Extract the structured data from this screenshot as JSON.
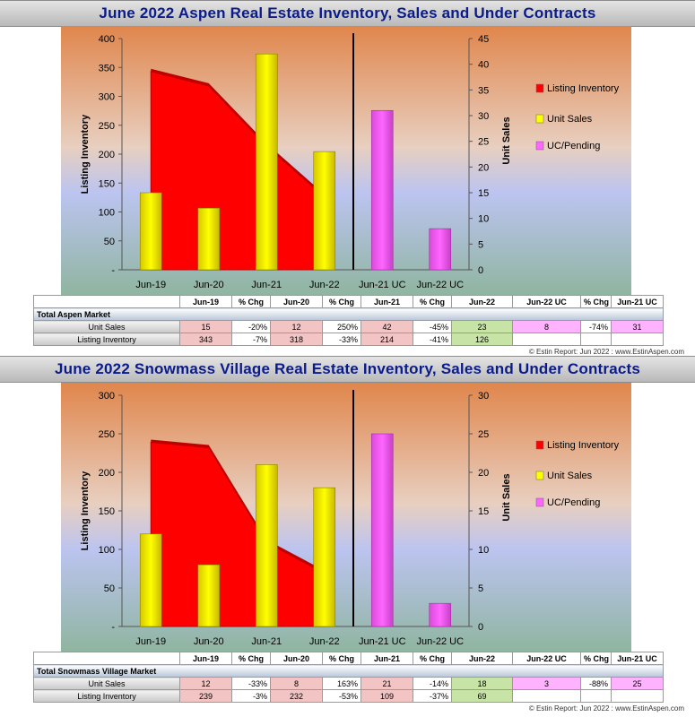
{
  "charts": [
    {
      "title": "June 2022 Aspen Real Estate Inventory, Sales and Under Contracts",
      "table_section": "Total Aspen Market",
      "credit": "© Estin Report: Jun 2022 : www.EstinAspen.com",
      "table_headers": [
        "Jun-19",
        "% Chg",
        "Jun-20",
        "% Chg",
        "Jun-21",
        "% Chg",
        "Jun-22",
        "Jun-22 UC",
        "% Chg",
        "Jun-21 UC"
      ],
      "unit_sales_row": {
        "label": "Unit Sales",
        "cells": [
          "15",
          "-20%",
          "12",
          "250%",
          "42",
          "-45%",
          "23",
          "8",
          "-74%",
          "31"
        ]
      },
      "inventory_row": {
        "label": "Listing Inventory",
        "cells": [
          "343",
          "-7%",
          "318",
          "-33%",
          "214",
          "-41%",
          "126",
          "",
          "",
          ""
        ]
      }
    },
    {
      "title": "June 2022 Snowmass Village Real Estate Inventory, Sales and Under Contracts",
      "table_section": "Total Snowmass Village Market",
      "credit": "© Estin Report: Jun 2022 : www.EstinAspen.com",
      "table_headers": [
        "Jun-19",
        "% Chg",
        "Jun-20",
        "% Chg",
        "Jun-21",
        "% Chg",
        "Jun-22",
        "Jun-22 UC",
        "% Chg",
        "Jun-21 UC"
      ],
      "unit_sales_row": {
        "label": "Unit Sales",
        "cells": [
          "12",
          "-33%",
          "8",
          "163%",
          "21",
          "-14%",
          "18",
          "3",
          "-88%",
          "25"
        ]
      },
      "inventory_row": {
        "label": "Listing Inventory",
        "cells": [
          "239",
          "-3%",
          "232",
          "-53%",
          "109",
          "-37%",
          "69",
          "",
          "",
          ""
        ]
      }
    }
  ],
  "colors": {
    "inventory": "#ff0000",
    "sales": "#ffff00",
    "uc": "#ff66ff"
  },
  "chart_data": [
    {
      "type": "bar",
      "categories": [
        "Jun-19",
        "Jun-20",
        "Jun-21",
        "Jun-22",
        "Jun-21 UC",
        "Jun-22 UC"
      ],
      "series": [
        {
          "name": "Listing Inventory",
          "kind": "area",
          "axis": "left",
          "values": [
            343,
            318,
            214,
            126,
            null,
            null
          ]
        },
        {
          "name": "Unit Sales",
          "kind": "bar",
          "axis": "right",
          "values": [
            15,
            12,
            42,
            23,
            null,
            null
          ]
        },
        {
          "name": "UC/Pending",
          "kind": "bar",
          "axis": "right",
          "values": [
            null,
            null,
            null,
            null,
            31,
            8
          ]
        }
      ],
      "ylabel": "Listing Inventory",
      "y2label": "Unit Sales",
      "ylim": [
        0,
        400
      ],
      "y2lim": [
        0,
        45
      ],
      "yticks": [
        "-",
        "50",
        "100",
        "150",
        "200",
        "250",
        "300",
        "350",
        "400"
      ],
      "y2ticks": [
        "0",
        "5",
        "10",
        "15",
        "20",
        "25",
        "30",
        "35",
        "40",
        "45"
      ],
      "legend": "right"
    },
    {
      "type": "bar",
      "categories": [
        "Jun-19",
        "Jun-20",
        "Jun-21",
        "Jun-22",
        "Jun-21 UC",
        "Jun-22 UC"
      ],
      "series": [
        {
          "name": "Listing Inventory",
          "kind": "area",
          "axis": "left",
          "values": [
            239,
            232,
            109,
            69,
            null,
            null
          ]
        },
        {
          "name": "Unit Sales",
          "kind": "bar",
          "axis": "right",
          "values": [
            12,
            8,
            21,
            18,
            null,
            null
          ]
        },
        {
          "name": "UC/Pending",
          "kind": "bar",
          "axis": "right",
          "values": [
            null,
            null,
            null,
            null,
            25,
            3
          ]
        }
      ],
      "ylabel": "Listing Inventory",
      "y2label": "Unit Sales",
      "ylim": [
        0,
        300
      ],
      "y2lim": [
        0,
        30
      ],
      "yticks": [
        "-",
        "50",
        "100",
        "150",
        "200",
        "250",
        "300"
      ],
      "y2ticks": [
        "0",
        "5",
        "10",
        "15",
        "20",
        "25",
        "30"
      ],
      "legend": "right"
    }
  ]
}
